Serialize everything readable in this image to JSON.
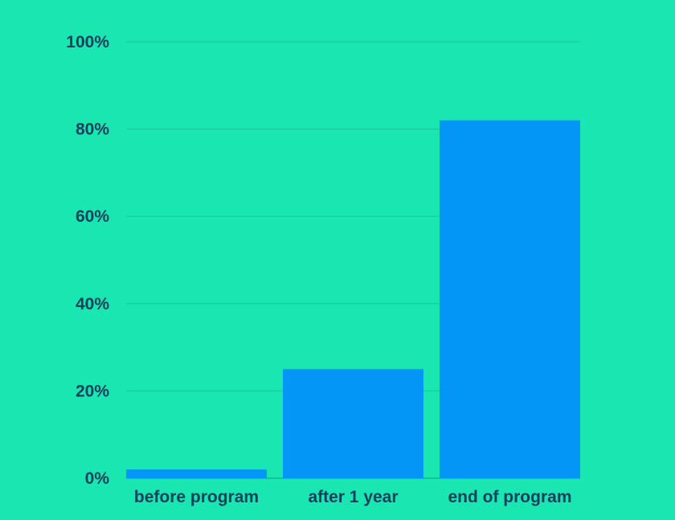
{
  "chart_data": {
    "type": "bar",
    "categories": [
      "before program",
      "after 1 year",
      "end of program"
    ],
    "values": [
      2,
      25,
      82
    ],
    "ylim": [
      0,
      100
    ],
    "y_ticks": [
      "0%",
      "20%",
      "40%",
      "60%",
      "80%",
      "100%"
    ],
    "y_tick_values": [
      0,
      20,
      40,
      60,
      80,
      100
    ],
    "grid": true,
    "colors": {
      "background": "#1ae6b2",
      "bar": "#0496f7",
      "text": "#10405c",
      "grid": "#17c79a"
    }
  }
}
